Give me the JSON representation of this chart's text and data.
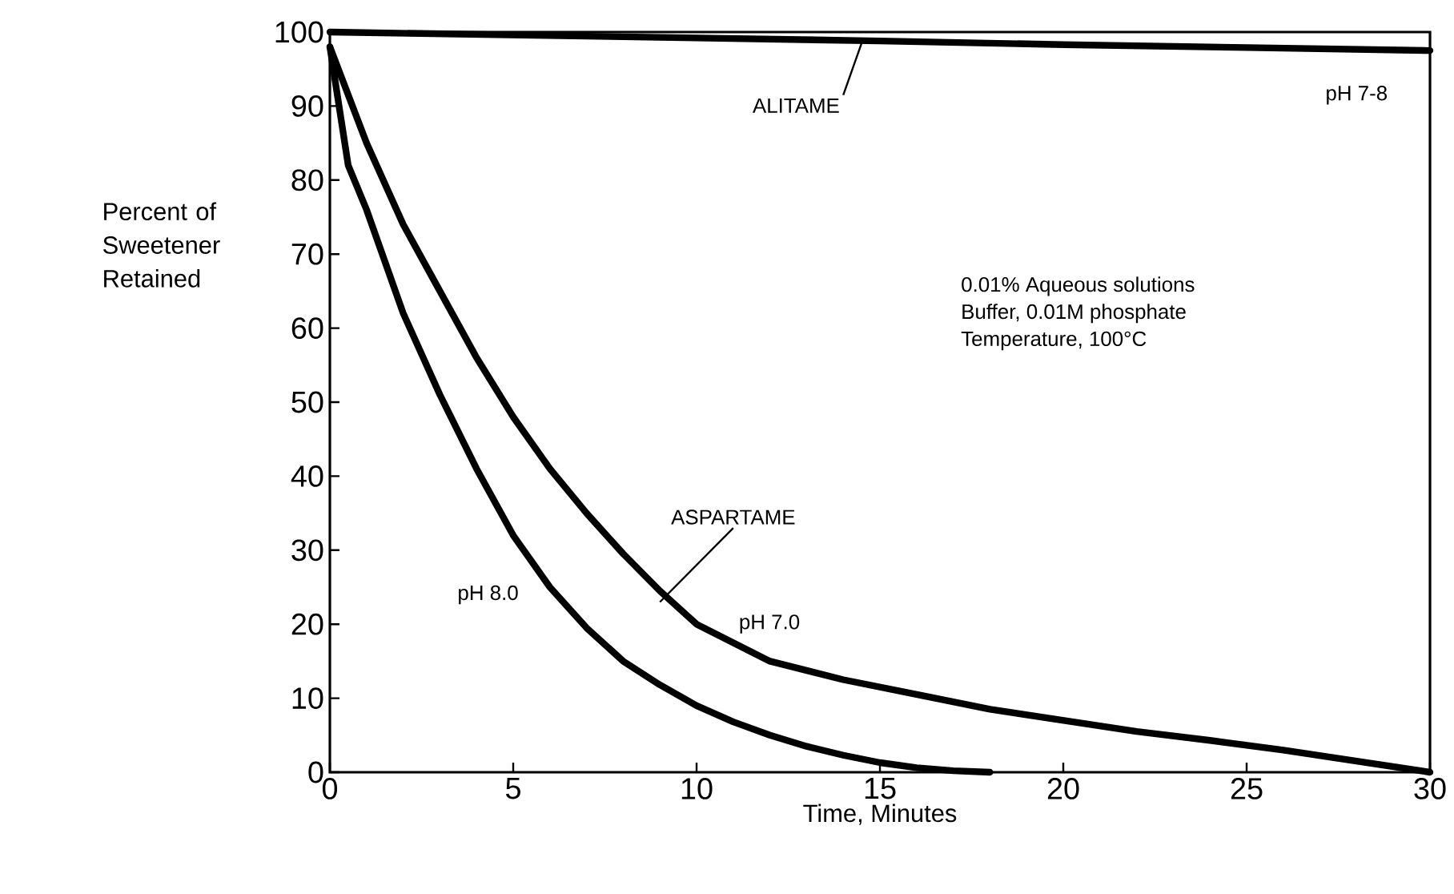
{
  "chart_data": {
    "type": "line",
    "xlabel": "Time, Minutes",
    "ylabel": "Percent of Sweetener Retained",
    "xlim": [
      0,
      30
    ],
    "ylim": [
      0,
      100
    ],
    "xticks": [
      0,
      5,
      10,
      15,
      20,
      25,
      30
    ],
    "yticks": [
      0,
      10,
      20,
      30,
      40,
      50,
      60,
      70,
      80,
      90,
      100
    ],
    "grid": false,
    "legend": false,
    "marker": "none",
    "line_style": "solid",
    "series": [
      {
        "name": "pH 7-8",
        "color": "#000000",
        "x": [
          0,
          5,
          10,
          15,
          20,
          25,
          30
        ],
        "values": [
          100,
          99.6,
          99.2,
          98.8,
          98.3,
          97.9,
          97.5
        ]
      },
      {
        "name": "pH 7.0",
        "color": "#000000",
        "x": [
          0,
          1,
          2,
          3,
          4,
          5,
          6,
          7,
          8,
          9,
          10,
          12,
          14,
          16,
          18,
          20,
          22,
          24,
          26,
          28,
          30
        ],
        "values": [
          98,
          85,
          74,
          65,
          56,
          48,
          41,
          35,
          29.5,
          24.5,
          20,
          15,
          12.5,
          10.5,
          8.5,
          7,
          5.5,
          4.3,
          3,
          1.5,
          0
        ]
      },
      {
        "name": "pH 8.0",
        "color": "#000000",
        "x": [
          0,
          0.5,
          1,
          2,
          3,
          4,
          5,
          6,
          7,
          8,
          9,
          10,
          11,
          12,
          13,
          14,
          15,
          16,
          17,
          18
        ],
        "values": [
          98,
          82,
          76,
          62,
          51,
          41,
          32,
          25,
          19.5,
          15,
          11.8,
          9,
          6.8,
          5,
          3.5,
          2.3,
          1.3,
          0.6,
          0.2,
          0
        ]
      }
    ],
    "annotations": [
      {
        "text": "ALITAME",
        "x": 14.5,
        "y": 98.5
      },
      {
        "text": "ASPARTAME",
        "x": 9,
        "y": 23
      },
      "0.01% Aqueous solutions",
      "Buffer, 0.01M phosphate",
      "Temperature, 100°C"
    ]
  }
}
